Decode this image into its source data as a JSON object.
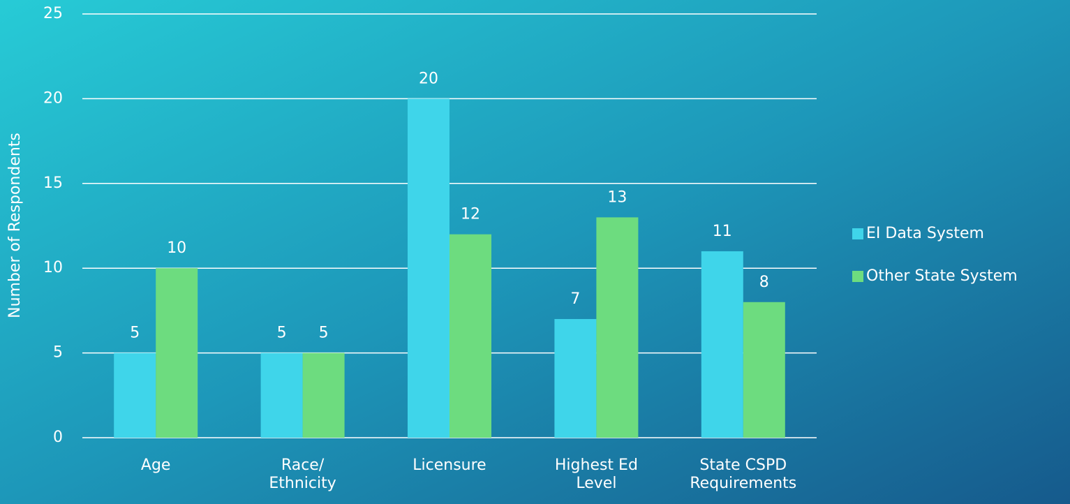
{
  "chart_data": {
    "type": "bar",
    "y_label": "Number of Respondents",
    "categories": [
      "Age",
      "Race/\nEthnicity",
      "Licensure",
      "Highest Ed\nLevel",
      "State CSPD\nRequirements"
    ],
    "series": [
      {
        "name": "EI Data System",
        "color": "#3fd5ea",
        "values": [
          5,
          5,
          20,
          7,
          11
        ]
      },
      {
        "name": "Other State System",
        "color": "#6ddc7f",
        "values": [
          10,
          5,
          12,
          13,
          8
        ]
      }
    ],
    "ylim": [
      0,
      25
    ],
    "yticks": [
      0,
      5,
      10,
      15,
      20,
      25
    ],
    "grid": true,
    "legend": "right"
  }
}
